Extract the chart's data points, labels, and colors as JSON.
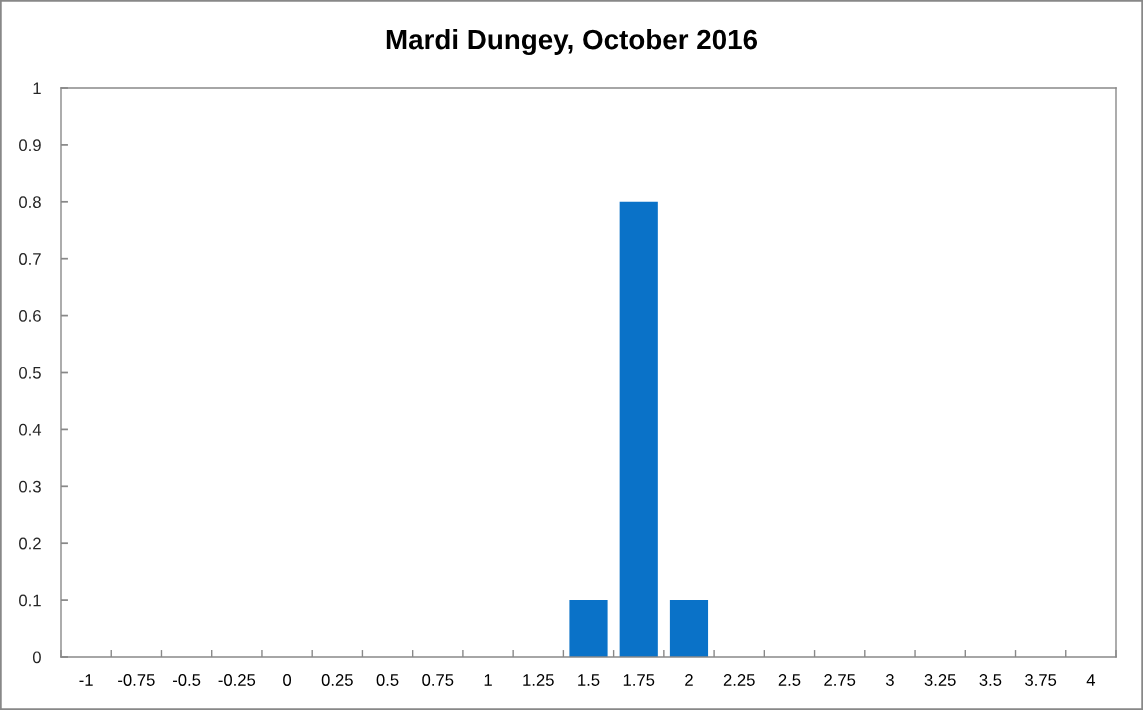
{
  "chart_data": {
    "type": "bar",
    "title": "Mardi Dungey, October 2016",
    "categories": [
      "-1",
      "-0.75",
      "-0.5",
      "-0.25",
      "0",
      "0.25",
      "0.5",
      "0.75",
      "1",
      "1.25",
      "1.5",
      "1.75",
      "2",
      "2.25",
      "2.5",
      "2.75",
      "3",
      "3.25",
      "3.5",
      "3.75",
      "4"
    ],
    "values": [
      0,
      0,
      0,
      0,
      0,
      0,
      0,
      0,
      0,
      0,
      0.1,
      0.8,
      0.1,
      0,
      0,
      0,
      0,
      0,
      0,
      0,
      0
    ],
    "color": "#0a72c8",
    "ylim": [
      0,
      1
    ],
    "yticks": [
      0,
      0.1,
      0.2,
      0.3,
      0.4,
      0.5,
      0.6,
      0.7,
      0.8,
      0.9,
      1
    ],
    "grid": false
  }
}
